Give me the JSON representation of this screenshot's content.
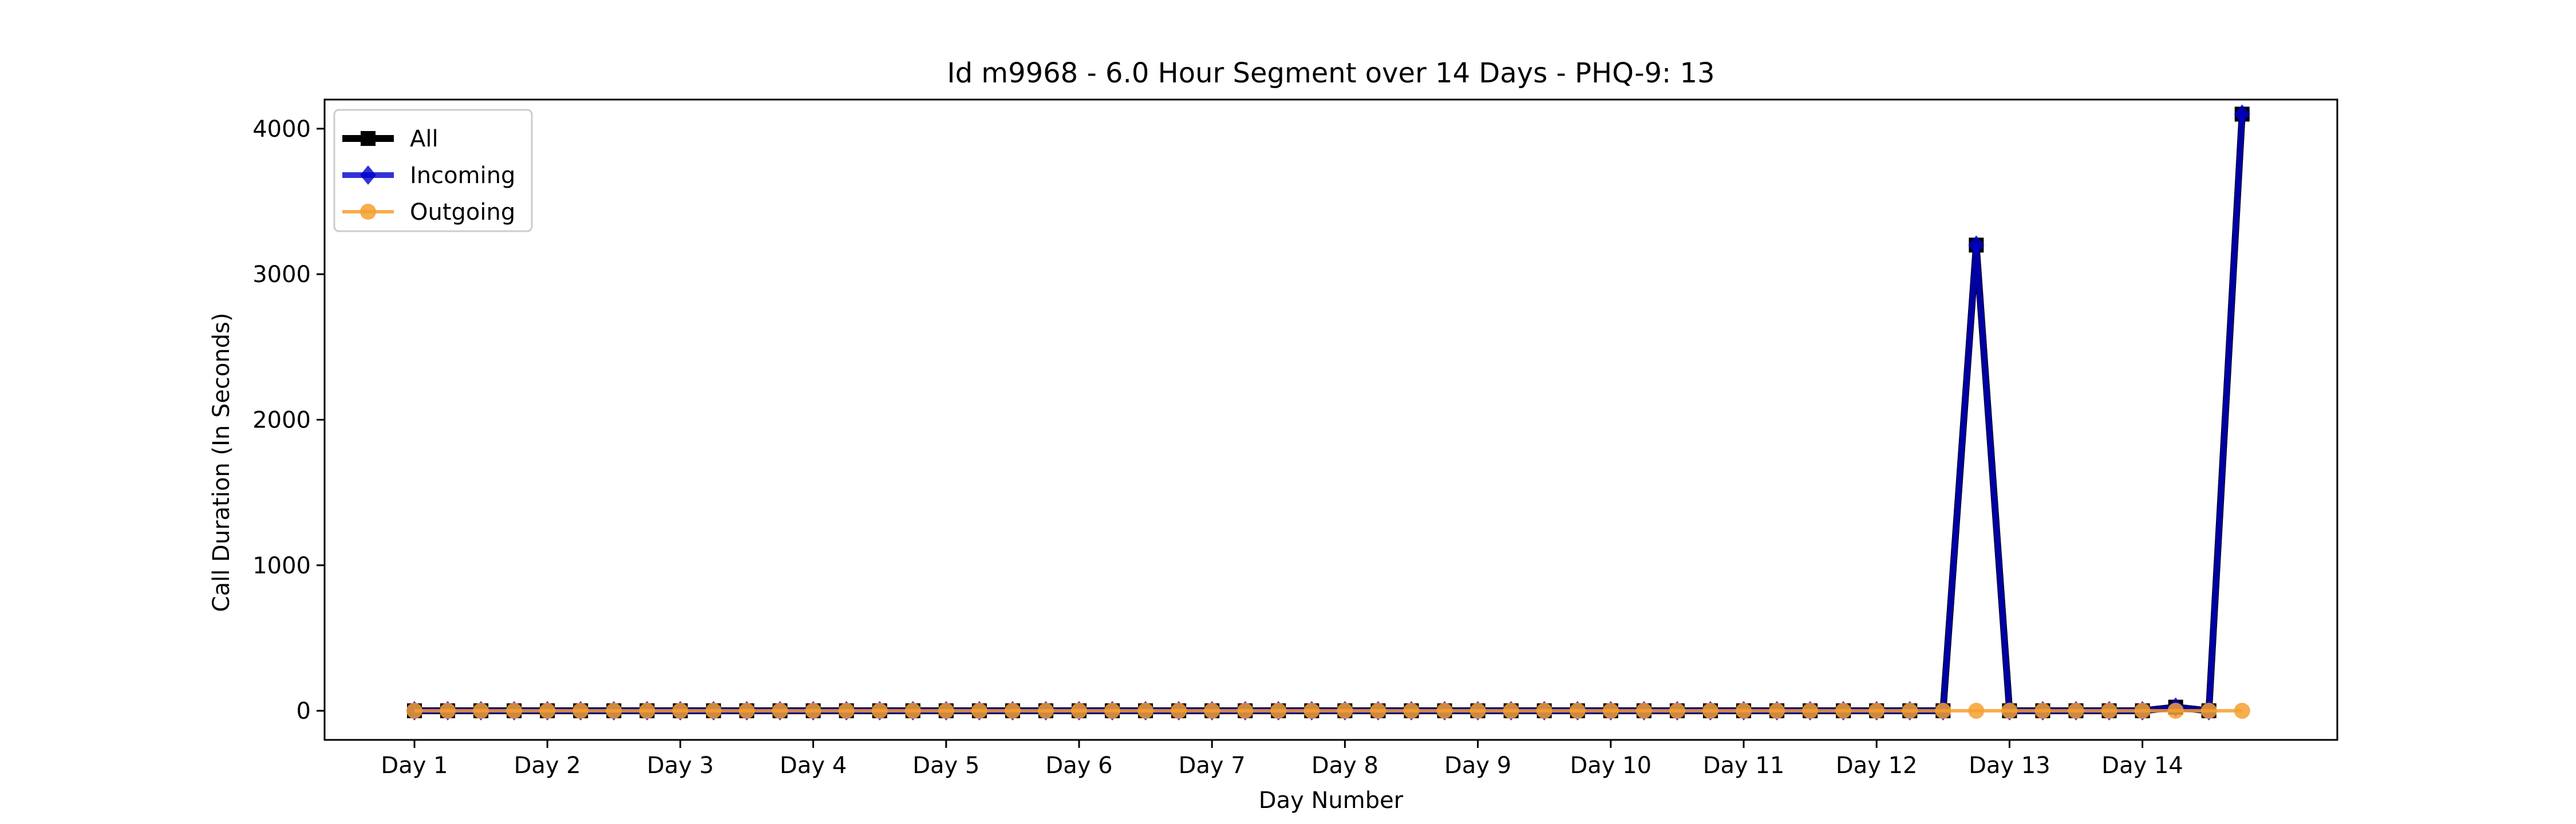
{
  "chart_data": {
    "type": "line",
    "title": "Id m9968 - 6.0 Hour Segment over 14 Days - PHQ-9: 13",
    "xlabel": "Day Number",
    "ylabel": "Call Duration (In Seconds)",
    "ylim": [
      -200,
      4200
    ],
    "yticks": [
      0,
      1000,
      2000,
      3000,
      4000
    ],
    "x_tick_labels": [
      "Day 1",
      "Day 2",
      "Day 3",
      "Day 4",
      "Day 5",
      "Day 6",
      "Day 7",
      "Day 8",
      "Day 9",
      "Day 10",
      "Day 11",
      "Day 12",
      "Day 13",
      "Day 14"
    ],
    "points_per_day": 4,
    "grid": false,
    "legend_position": "top-left",
    "series": [
      {
        "name": "All",
        "color": "#000000",
        "marker": "square",
        "values": [
          0,
          0,
          0,
          0,
          0,
          0,
          0,
          0,
          0,
          0,
          0,
          0,
          0,
          0,
          0,
          0,
          0,
          0,
          0,
          0,
          0,
          0,
          0,
          0,
          0,
          0,
          0,
          0,
          0,
          0,
          0,
          0,
          0,
          0,
          0,
          0,
          0,
          0,
          0,
          0,
          0,
          0,
          0,
          0,
          0,
          0,
          0,
          3200,
          0,
          0,
          0,
          0,
          0,
          25,
          0,
          4100
        ]
      },
      {
        "name": "Incoming",
        "color": "#0000cc",
        "marker": "diamond",
        "values": [
          0,
          0,
          0,
          0,
          0,
          0,
          0,
          0,
          0,
          0,
          0,
          0,
          0,
          0,
          0,
          0,
          0,
          0,
          0,
          0,
          0,
          0,
          0,
          0,
          0,
          0,
          0,
          0,
          0,
          0,
          0,
          0,
          0,
          0,
          0,
          0,
          0,
          0,
          0,
          0,
          0,
          0,
          0,
          0,
          0,
          0,
          0,
          3200,
          0,
          0,
          0,
          0,
          0,
          25,
          0,
          4100
        ]
      },
      {
        "name": "Outgoing",
        "color": "#f5a030",
        "marker": "circle",
        "values": [
          0,
          0,
          0,
          0,
          0,
          0,
          0,
          0,
          0,
          0,
          0,
          0,
          0,
          0,
          0,
          0,
          0,
          0,
          0,
          0,
          0,
          0,
          0,
          0,
          0,
          0,
          0,
          0,
          0,
          0,
          0,
          0,
          0,
          0,
          0,
          0,
          0,
          0,
          0,
          0,
          0,
          0,
          0,
          0,
          0,
          0,
          0,
          0,
          0,
          0,
          0,
          0,
          0,
          0,
          0,
          0
        ]
      }
    ]
  }
}
